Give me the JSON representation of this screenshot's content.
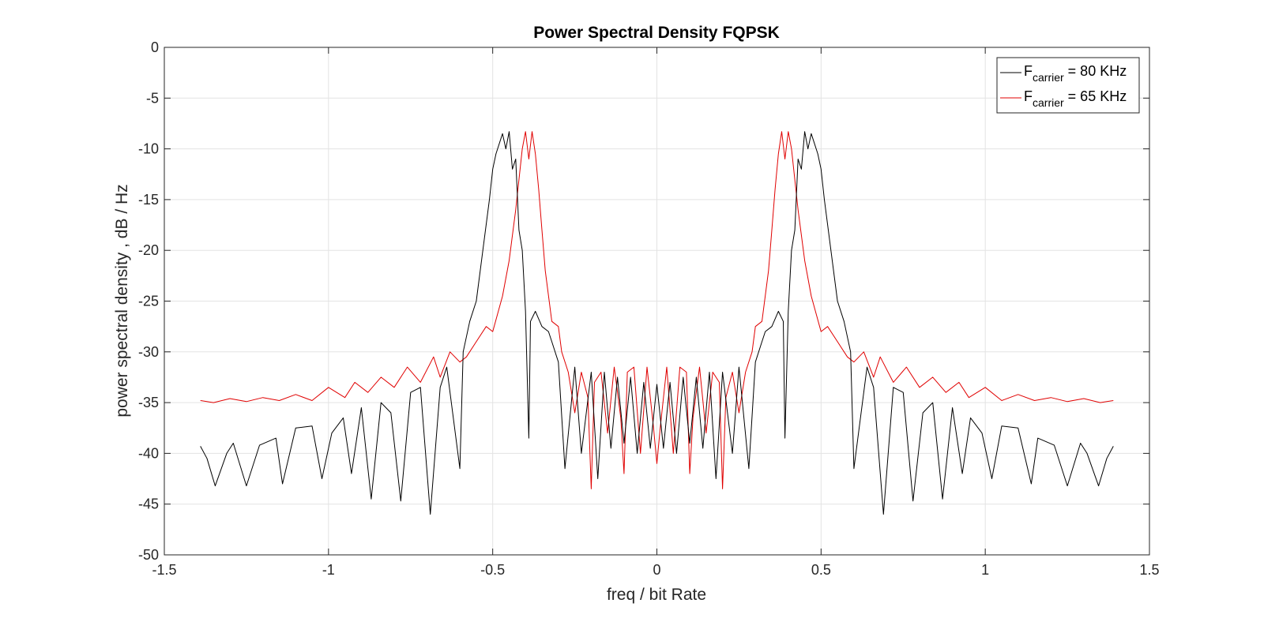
{
  "chart_data": {
    "type": "line",
    "title": "Power Spectral Density FQPSK",
    "xlabel": "freq / bit Rate",
    "ylabel": "power spectral density , dB / Hz",
    "xlim": [
      -1.5,
      1.5
    ],
    "ylim": [
      -50,
      0
    ],
    "xticks": [
      -1.5,
      -1,
      -0.5,
      0,
      0.5,
      1,
      1.5
    ],
    "xtick_labels": [
      "-1.5",
      "-1",
      "-0.5",
      "0",
      "0.5",
      "1",
      "1.5"
    ],
    "yticks": [
      0,
      -5,
      -10,
      -15,
      -20,
      -25,
      -30,
      -35,
      -40,
      -45,
      -50
    ],
    "ytick_labels": [
      "0",
      "-5",
      "-10",
      "-15",
      "-20",
      "-25",
      "-30",
      "-35",
      "-40",
      "-45",
      "-50"
    ],
    "grid": true,
    "legend_position": "top-right",
    "series": [
      {
        "name_main": "F",
        "name_sub": "carrier",
        "name_rest": " = 80 KHz",
        "color": "#000000",
        "x": [
          -1.39,
          -1.37,
          -1.345,
          -1.31,
          -1.29,
          -1.25,
          -1.21,
          -1.16,
          -1.14,
          -1.1,
          -1.05,
          -1.02,
          -0.99,
          -0.955,
          -0.93,
          -0.9,
          -0.87,
          -0.84,
          -0.81,
          -0.78,
          -0.75,
          -0.72,
          -0.69,
          -0.66,
          -0.64,
          -0.6,
          -0.59,
          -0.57,
          -0.55,
          -0.53,
          -0.51,
          -0.5,
          -0.49,
          -0.47,
          -0.46,
          -0.45,
          -0.44,
          -0.43,
          -0.42,
          -0.41,
          -0.4,
          -0.39,
          -0.385,
          -0.37,
          -0.35,
          -0.33,
          -0.32,
          -0.3,
          -0.28,
          -0.25,
          -0.23,
          -0.2,
          -0.18,
          -0.16,
          -0.14,
          -0.12,
          -0.1,
          -0.08,
          -0.06,
          -0.04,
          -0.02,
          0.0,
          0.02,
          0.04,
          0.06,
          0.08,
          0.1,
          0.12,
          0.14,
          0.16,
          0.18,
          0.2,
          0.23,
          0.25,
          0.28,
          0.3,
          0.32,
          0.33,
          0.35,
          0.37,
          0.385,
          0.39,
          0.4,
          0.41,
          0.42,
          0.43,
          0.44,
          0.45,
          0.46,
          0.47,
          0.49,
          0.5,
          0.51,
          0.53,
          0.55,
          0.57,
          0.59,
          0.6,
          0.64,
          0.66,
          0.69,
          0.72,
          0.75,
          0.78,
          0.81,
          0.84,
          0.87,
          0.9,
          0.93,
          0.955,
          0.99,
          1.02,
          1.05,
          1.1,
          1.14,
          1.16,
          1.21,
          1.25,
          1.29,
          1.31,
          1.345,
          1.37,
          1.39
        ],
        "y": [
          -39.3,
          -40.5,
          -43.2,
          -40.0,
          -39.0,
          -43.2,
          -39.2,
          -38.5,
          -43.0,
          -37.5,
          -37.3,
          -42.5,
          -38.0,
          -36.5,
          -42.0,
          -35.5,
          -44.5,
          -35.0,
          -36.0,
          -44.7,
          -34.0,
          -33.5,
          -46.0,
          -33.5,
          -31.5,
          -41.5,
          -30.0,
          -27.0,
          -25.0,
          -20.0,
          -15.0,
          -12.0,
          -10.5,
          -8.5,
          -10.0,
          -8.3,
          -12.0,
          -11.0,
          -18.0,
          -20.0,
          -26.0,
          -38.5,
          -27.0,
          -26.0,
          -27.5,
          -28.0,
          -29.0,
          -31.0,
          -41.5,
          -31.5,
          -40.0,
          -32.0,
          -42.5,
          -32.0,
          -39.5,
          -32.5,
          -39.0,
          -32.5,
          -40.0,
          -33.0,
          -39.5,
          -33.2,
          -39.5,
          -33.0,
          -40.0,
          -32.5,
          -39.0,
          -32.5,
          -39.5,
          -32.0,
          -42.5,
          -32.0,
          -40.0,
          -31.5,
          -41.5,
          -31.0,
          -29.0,
          -28.0,
          -27.5,
          -26.0,
          -27.0,
          -38.5,
          -26.0,
          -20.0,
          -18.0,
          -11.0,
          -12.0,
          -8.3,
          -10.0,
          -8.5,
          -10.5,
          -12.0,
          -15.0,
          -20.0,
          -25.0,
          -27.0,
          -30.0,
          -41.5,
          -31.5,
          -33.5,
          -46.0,
          -33.5,
          -34.0,
          -44.7,
          -36.0,
          -35.0,
          -44.5,
          -35.5,
          -42.0,
          -36.5,
          -38.0,
          -42.5,
          -37.3,
          -37.5,
          -43.0,
          -38.5,
          -39.2,
          -43.2,
          -39.0,
          -40.0,
          -43.2,
          -40.5,
          -39.3
        ]
      },
      {
        "name_main": "F",
        "name_sub": "carrier",
        "name_rest": " = 65 KHz",
        "color": "#e00000",
        "x": [
          -1.39,
          -1.35,
          -1.3,
          -1.25,
          -1.2,
          -1.15,
          -1.1,
          -1.05,
          -1.0,
          -0.95,
          -0.92,
          -0.88,
          -0.84,
          -0.8,
          -0.76,
          -0.72,
          -0.68,
          -0.66,
          -0.63,
          -0.6,
          -0.58,
          -0.55,
          -0.52,
          -0.5,
          -0.47,
          -0.45,
          -0.43,
          -0.41,
          -0.4,
          -0.39,
          -0.38,
          -0.37,
          -0.36,
          -0.35,
          -0.34,
          -0.32,
          -0.3,
          -0.29,
          -0.27,
          -0.25,
          -0.23,
          -0.21,
          -0.2,
          -0.19,
          -0.17,
          -0.15,
          -0.13,
          -0.11,
          -0.1,
          -0.09,
          -0.07,
          -0.05,
          -0.03,
          -0.01,
          0.0,
          0.01,
          0.03,
          0.05,
          0.07,
          0.09,
          0.1,
          0.11,
          0.13,
          0.15,
          0.17,
          0.19,
          0.2,
          0.21,
          0.23,
          0.25,
          0.27,
          0.29,
          0.3,
          0.32,
          0.34,
          0.35,
          0.36,
          0.37,
          0.38,
          0.39,
          0.4,
          0.41,
          0.43,
          0.45,
          0.47,
          0.5,
          0.52,
          0.55,
          0.58,
          0.6,
          0.63,
          0.66,
          0.68,
          0.72,
          0.76,
          0.8,
          0.84,
          0.88,
          0.92,
          0.95,
          1.0,
          1.05,
          1.1,
          1.15,
          1.2,
          1.25,
          1.3,
          1.35,
          1.39
        ],
        "y": [
          -34.8,
          -35.0,
          -34.6,
          -34.9,
          -34.5,
          -34.8,
          -34.2,
          -34.8,
          -33.5,
          -34.5,
          -33.0,
          -34.0,
          -32.5,
          -33.5,
          -31.5,
          -33.0,
          -30.5,
          -32.5,
          -30.0,
          -31.0,
          -30.5,
          -29.0,
          -27.5,
          -28.0,
          -24.5,
          -21.0,
          -16.0,
          -10.0,
          -8.3,
          -11.0,
          -8.3,
          -10.5,
          -14.0,
          -18.0,
          -22.0,
          -27.0,
          -27.5,
          -30.0,
          -32.0,
          -36.0,
          -32.0,
          -34.5,
          -43.5,
          -33.0,
          -32.0,
          -38.0,
          -31.5,
          -36.5,
          -42.0,
          -32.0,
          -31.5,
          -40.0,
          -31.5,
          -37.5,
          -41.0,
          -37.5,
          -31.5,
          -40.0,
          -31.5,
          -32.0,
          -42.0,
          -36.5,
          -31.5,
          -38.0,
          -32.0,
          -33.0,
          -43.5,
          -34.5,
          -32.0,
          -36.0,
          -32.0,
          -30.0,
          -27.5,
          -27.0,
          -22.0,
          -18.0,
          -14.0,
          -10.5,
          -8.3,
          -11.0,
          -8.3,
          -10.0,
          -16.0,
          -21.0,
          -24.5,
          -28.0,
          -27.5,
          -29.0,
          -30.5,
          -31.0,
          -30.0,
          -32.5,
          -30.5,
          -33.0,
          -31.5,
          -33.5,
          -32.5,
          -34.0,
          -33.0,
          -34.5,
          -33.5,
          -34.8,
          -34.2,
          -34.8,
          -34.5,
          -34.9,
          -34.6,
          -35.0,
          -34.8
        ]
      }
    ]
  }
}
